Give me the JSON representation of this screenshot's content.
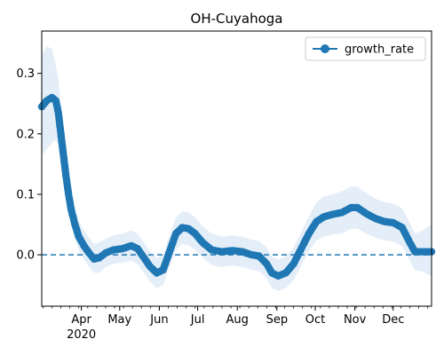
{
  "chart_data": {
    "type": "line",
    "title": "OH-Cuyahoga",
    "xlabel": "",
    "ylabel": "",
    "x_range": [
      "2020-03-01",
      "2020-12-31"
    ],
    "ylim": [
      -0.085,
      0.37
    ],
    "x_ticks": [
      {
        "date": "2020-04-01",
        "label": "Apr"
      },
      {
        "date": "2020-05-01",
        "label": "May"
      },
      {
        "date": "2020-06-01",
        "label": "Jun"
      },
      {
        "date": "2020-07-01",
        "label": "Jul"
      },
      {
        "date": "2020-08-01",
        "label": "Aug"
      },
      {
        "date": "2020-09-01",
        "label": "Sep"
      },
      {
        "date": "2020-10-01",
        "label": "Oct"
      },
      {
        "date": "2020-11-01",
        "label": "Nov"
      },
      {
        "date": "2020-12-01",
        "label": "Dec"
      }
    ],
    "year_label": "2020",
    "y_ticks": [
      {
        "value": 0.0,
        "label": "0.0"
      },
      {
        "value": 0.1,
        "label": "0.1"
      },
      {
        "value": 0.2,
        "label": "0.2"
      },
      {
        "value": 0.3,
        "label": "0.3"
      }
    ],
    "reference_line": {
      "value": 0.0,
      "style": "dashed"
    },
    "legend": {
      "position": "top-right",
      "entries": [
        "growth_rate"
      ]
    },
    "series": [
      {
        "name": "growth_rate",
        "color": "#1f77b4",
        "band_color": "#dbe8f5",
        "points": [
          {
            "date": "2020-03-01",
            "value": 0.245,
            "lower": 0.165,
            "upper": 0.33
          },
          {
            "date": "2020-03-05",
            "value": 0.255,
            "lower": 0.175,
            "upper": 0.345
          },
          {
            "date": "2020-03-09",
            "value": 0.26,
            "lower": 0.185,
            "upper": 0.34
          },
          {
            "date": "2020-03-12",
            "value": 0.255,
            "lower": 0.19,
            "upper": 0.315
          },
          {
            "date": "2020-03-14",
            "value": 0.235,
            "lower": 0.18,
            "upper": 0.29
          },
          {
            "date": "2020-03-16",
            "value": 0.2,
            "lower": 0.155,
            "upper": 0.25
          },
          {
            "date": "2020-03-18",
            "value": 0.165,
            "lower": 0.125,
            "upper": 0.21
          },
          {
            "date": "2020-03-20",
            "value": 0.13,
            "lower": 0.095,
            "upper": 0.17
          },
          {
            "date": "2020-03-22",
            "value": 0.1,
            "lower": 0.07,
            "upper": 0.135
          },
          {
            "date": "2020-03-24",
            "value": 0.075,
            "lower": 0.05,
            "upper": 0.105
          },
          {
            "date": "2020-03-27",
            "value": 0.05,
            "lower": 0.025,
            "upper": 0.08
          },
          {
            "date": "2020-03-30",
            "value": 0.03,
            "lower": 0.008,
            "upper": 0.055
          },
          {
            "date": "2020-04-03",
            "value": 0.015,
            "lower": -0.008,
            "upper": 0.04
          },
          {
            "date": "2020-04-07",
            "value": 0.003,
            "lower": -0.02,
            "upper": 0.028
          },
          {
            "date": "2020-04-11",
            "value": -0.007,
            "lower": -0.03,
            "upper": 0.018
          },
          {
            "date": "2020-04-15",
            "value": -0.005,
            "lower": -0.03,
            "upper": 0.02
          },
          {
            "date": "2020-04-20",
            "value": 0.003,
            "lower": -0.02,
            "upper": 0.027
          },
          {
            "date": "2020-04-26",
            "value": 0.008,
            "lower": -0.015,
            "upper": 0.032
          },
          {
            "date": "2020-05-03",
            "value": 0.01,
            "lower": -0.013,
            "upper": 0.035
          },
          {
            "date": "2020-05-10",
            "value": 0.015,
            "lower": -0.01,
            "upper": 0.04
          },
          {
            "date": "2020-05-15",
            "value": 0.01,
            "lower": -0.015,
            "upper": 0.035
          },
          {
            "date": "2020-05-20",
            "value": -0.005,
            "lower": -0.03,
            "upper": 0.02
          },
          {
            "date": "2020-05-25",
            "value": -0.02,
            "lower": -0.045,
            "upper": 0.005
          },
          {
            "date": "2020-05-30",
            "value": -0.03,
            "lower": -0.055,
            "upper": -0.005
          },
          {
            "date": "2020-06-04",
            "value": -0.025,
            "lower": -0.05,
            "upper": 0.0
          },
          {
            "date": "2020-06-09",
            "value": 0.005,
            "lower": -0.02,
            "upper": 0.032
          },
          {
            "date": "2020-06-14",
            "value": 0.035,
            "lower": 0.008,
            "upper": 0.062
          },
          {
            "date": "2020-06-19",
            "value": 0.045,
            "lower": 0.018,
            "upper": 0.072
          },
          {
            "date": "2020-06-24",
            "value": 0.043,
            "lower": 0.016,
            "upper": 0.07
          },
          {
            "date": "2020-06-29",
            "value": 0.035,
            "lower": 0.008,
            "upper": 0.062
          },
          {
            "date": "2020-07-05",
            "value": 0.02,
            "lower": -0.005,
            "upper": 0.047
          },
          {
            "date": "2020-07-12",
            "value": 0.008,
            "lower": -0.017,
            "upper": 0.035
          },
          {
            "date": "2020-07-20",
            "value": 0.005,
            "lower": -0.02,
            "upper": 0.03
          },
          {
            "date": "2020-07-28",
            "value": 0.007,
            "lower": -0.018,
            "upper": 0.032
          },
          {
            "date": "2020-08-05",
            "value": 0.005,
            "lower": -0.02,
            "upper": 0.03
          },
          {
            "date": "2020-08-12",
            "value": 0.0,
            "lower": -0.025,
            "upper": 0.025
          },
          {
            "date": "2020-08-18",
            "value": -0.002,
            "lower": -0.027,
            "upper": 0.023
          },
          {
            "date": "2020-08-24",
            "value": -0.015,
            "lower": -0.04,
            "upper": 0.012
          },
          {
            "date": "2020-08-28",
            "value": -0.03,
            "lower": -0.055,
            "upper": -0.003
          },
          {
            "date": "2020-09-02",
            "value": -0.035,
            "lower": -0.06,
            "upper": -0.008
          },
          {
            "date": "2020-09-08",
            "value": -0.03,
            "lower": -0.055,
            "upper": -0.003
          },
          {
            "date": "2020-09-14",
            "value": -0.015,
            "lower": -0.042,
            "upper": 0.012
          },
          {
            "date": "2020-09-20",
            "value": 0.01,
            "lower": -0.018,
            "upper": 0.038
          },
          {
            "date": "2020-09-26",
            "value": 0.035,
            "lower": 0.006,
            "upper": 0.064
          },
          {
            "date": "2020-10-02",
            "value": 0.055,
            "lower": 0.024,
            "upper": 0.087
          },
          {
            "date": "2020-10-08",
            "value": 0.063,
            "lower": 0.03,
            "upper": 0.097
          },
          {
            "date": "2020-10-15",
            "value": 0.067,
            "lower": 0.034,
            "upper": 0.1
          },
          {
            "date": "2020-10-22",
            "value": 0.07,
            "lower": 0.035,
            "upper": 0.105
          },
          {
            "date": "2020-10-29",
            "value": 0.078,
            "lower": 0.043,
            "upper": 0.113
          },
          {
            "date": "2020-11-03",
            "value": 0.078,
            "lower": 0.043,
            "upper": 0.113
          },
          {
            "date": "2020-11-10",
            "value": 0.068,
            "lower": 0.035,
            "upper": 0.102
          },
          {
            "date": "2020-11-17",
            "value": 0.06,
            "lower": 0.028,
            "upper": 0.093
          },
          {
            "date": "2020-11-24",
            "value": 0.055,
            "lower": 0.024,
            "upper": 0.087
          },
          {
            "date": "2020-12-01",
            "value": 0.053,
            "lower": 0.022,
            "upper": 0.085
          },
          {
            "date": "2020-12-08",
            "value": 0.045,
            "lower": 0.014,
            "upper": 0.077
          },
          {
            "date": "2020-12-14",
            "value": 0.02,
            "lower": -0.01,
            "upper": 0.052
          },
          {
            "date": "2020-12-18",
            "value": 0.005,
            "lower": -0.025,
            "upper": 0.035
          },
          {
            "date": "2020-12-24",
            "value": 0.005,
            "lower": -0.028,
            "upper": 0.04
          },
          {
            "date": "2020-12-31",
            "value": 0.005,
            "lower": -0.035,
            "upper": 0.05
          }
        ]
      }
    ]
  }
}
